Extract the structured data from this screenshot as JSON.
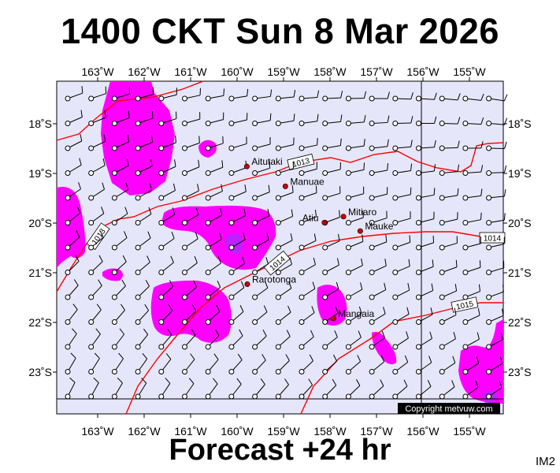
{
  "header": {
    "title": "1400 CKT Sun 8 Mar 2026"
  },
  "footer": {
    "forecast": "Forecast +24 hr",
    "code": "IM2"
  },
  "map": {
    "lon_labels": [
      "163˚W",
      "162˚W",
      "161˚W",
      "160˚W",
      "159˚W",
      "158˚W",
      "157˚W",
      "156˚W",
      "155˚W"
    ],
    "lat_labels": [
      "18˚S",
      "19˚S",
      "20˚S",
      "21˚S",
      "22˚S",
      "23˚S"
    ],
    "places": [
      {
        "name": "Aitutaki",
        "lon": -159.79,
        "lat": -18.86
      },
      {
        "name": "Manuae",
        "lon": -158.96,
        "lat": -19.26
      },
      {
        "name": "Atiu",
        "lon": -158.12,
        "lat": -19.99
      },
      {
        "name": "Mitiaro",
        "lon": -157.71,
        "lat": -19.87
      },
      {
        "name": "Mauke",
        "lon": -157.35,
        "lat": -20.16
      },
      {
        "name": "Rarotonga",
        "lon": -159.78,
        "lat": -21.23
      },
      {
        "name": "Mangaia",
        "lon": -157.93,
        "lat": -21.92
      }
    ],
    "isobar_labels": [
      "1013",
      "1013",
      "1014",
      "1014",
      "1015"
    ],
    "copyright": "Copyright metvuw.com",
    "colors": {
      "background": "#e6e6fa",
      "rain": "#ff00ff",
      "heavy_rain": "#9933ff",
      "isobar": "#ff0000",
      "island": "#cc0000"
    }
  }
}
